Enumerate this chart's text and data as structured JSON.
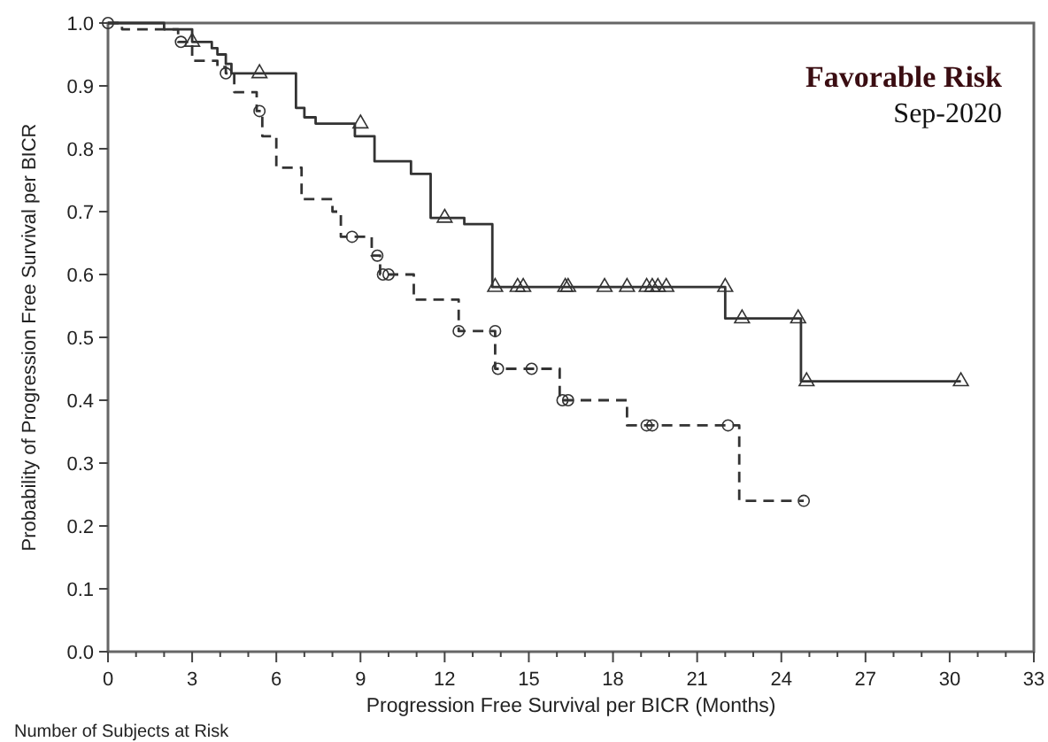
{
  "chart_data": {
    "type": "step",
    "title": "Favorable Risk",
    "subtitle": "Sep-2020",
    "xlabel": "Progression Free Survival per BICR (Months)",
    "ylabel": "Probability of Progression Free Survival per BICR",
    "annotations": [
      "Number of Subjects at Risk"
    ],
    "xlim": [
      0,
      33
    ],
    "ylim": [
      0,
      1.0
    ],
    "xticks": [
      0,
      {
        "value": 1,
        "label": null
      },
      {
        "value": 2,
        "label": null
      },
      3,
      {
        "value": 4,
        "label": null
      },
      {
        "value": 5,
        "label": null
      },
      6,
      {
        "value": 7,
        "label": null
      },
      {
        "value": 8,
        "label": null
      },
      9,
      {
        "value": 10,
        "label": null
      },
      {
        "value": 11,
        "label": null
      },
      12,
      {
        "value": 13,
        "label": null
      },
      {
        "value": 14,
        "label": null
      },
      15,
      {
        "value": 16,
        "label": null
      },
      {
        "value": 17,
        "label": null
      },
      18,
      {
        "value": 19,
        "label": null
      },
      {
        "value": 20,
        "label": null
      },
      21,
      {
        "value": 22,
        "label": null
      },
      {
        "value": 23,
        "label": null
      },
      24,
      {
        "value": 25,
        "label": null
      },
      {
        "value": 26,
        "label": null
      },
      27,
      {
        "value": 28,
        "label": null
      },
      {
        "value": 29,
        "label": null
      },
      30,
      {
        "value": 31,
        "label": null
      },
      {
        "value": 32,
        "label": null
      },
      33
    ],
    "yticks": [
      {
        "value": 0,
        "label": "0.0"
      },
      {
        "value": 0.1,
        "label": "0.1"
      },
      {
        "value": 0.2,
        "label": "0.2"
      },
      {
        "value": 0.3,
        "label": "0.3"
      },
      {
        "value": 0.4,
        "label": "0.4"
      },
      {
        "value": 0.5,
        "label": "0.5"
      },
      {
        "value": 0.6,
        "label": "0.6"
      },
      {
        "value": 0.7,
        "label": "0.7"
      },
      {
        "value": 0.8,
        "label": "0.8"
      },
      {
        "value": 0.9,
        "label": "0.9"
      },
      {
        "value": 1.0,
        "label": "1.0"
      }
    ],
    "grid": false,
    "series": [
      {
        "type": "step",
        "color": "#333333",
        "line_style": "solid",
        "marker": "none",
        "x": [
          0,
          2.0,
          3.0,
          3.7,
          3.9,
          4.2,
          4.4,
          6.7,
          7.0,
          7.4,
          8.8,
          9.5,
          10.8,
          11.5,
          12.7,
          13.7,
          22.0,
          24.7,
          30.4
        ],
        "values": [
          1.0,
          0.99,
          0.97,
          0.96,
          0.95,
          0.935,
          0.92,
          0.865,
          0.85,
          0.84,
          0.82,
          0.78,
          0.76,
          0.69,
          0.68,
          0.58,
          0.53,
          0.43,
          0.43
        ]
      },
      {
        "type": "step",
        "color": "#333333",
        "line_style": "dashed",
        "marker": "none",
        "x": [
          0,
          0.5,
          2.5,
          3.0,
          3.9,
          4.2,
          4.5,
          5.3,
          5.5,
          6.0,
          6.9,
          8.0,
          8.3,
          9.4,
          9.7,
          10.9,
          12.5,
          13.8,
          16.1,
          18.5,
          22.5,
          24.8
        ],
        "values": [
          1.0,
          0.99,
          0.97,
          0.94,
          0.93,
          0.92,
          0.89,
          0.86,
          0.82,
          0.77,
          0.72,
          0.7,
          0.66,
          0.63,
          0.6,
          0.56,
          0.51,
          0.45,
          0.4,
          0.36,
          0.24,
          0.24
        ]
      },
      {
        "type": "scatter",
        "color": "#333333",
        "marker": "triangle",
        "x": [
          3.0,
          5.4,
          9.0,
          12.0,
          13.8,
          14.6,
          14.8,
          16.3,
          16.4,
          17.7,
          18.5,
          19.2,
          19.4,
          19.6,
          19.9,
          22.0,
          22.6,
          24.6,
          24.9,
          30.4
        ],
        "values": [
          0.97,
          0.92,
          0.84,
          0.69,
          0.58,
          0.58,
          0.58,
          0.58,
          0.58,
          0.58,
          0.58,
          0.58,
          0.58,
          0.58,
          0.58,
          0.58,
          0.53,
          0.53,
          0.43,
          0.43
        ]
      },
      {
        "type": "scatter",
        "color": "#333333",
        "marker": "circle",
        "x": [
          0,
          2.6,
          4.2,
          5.4,
          8.7,
          9.6,
          9.8,
          10.0,
          12.5,
          13.8,
          13.9,
          15.1,
          16.2,
          16.4,
          19.2,
          19.4,
          22.1,
          24.8
        ],
        "values": [
          1.0,
          0.97,
          0.92,
          0.86,
          0.66,
          0.63,
          0.6,
          0.6,
          0.51,
          0.51,
          0.45,
          0.45,
          0.4,
          0.4,
          0.36,
          0.36,
          0.36,
          0.24
        ]
      }
    ]
  }
}
